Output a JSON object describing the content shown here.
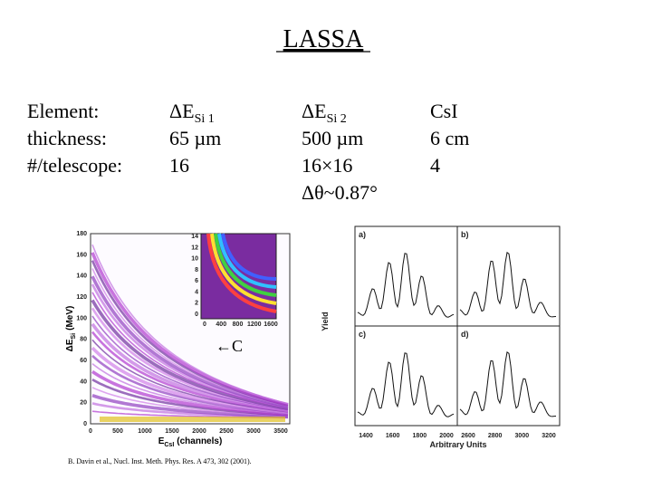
{
  "title": "LASSA",
  "columns": [
    {
      "lines": [
        "Element:",
        "thickness:",
        "#/telescope:"
      ]
    },
    {
      "symbol": "ΔE",
      "subscript": "Si 1",
      "lines": [
        "65 µm",
        "16"
      ]
    },
    {
      "symbol": "ΔE",
      "subscript": "Si 2",
      "lines": [
        "500 µm",
        "16×16",
        "Δθ~0.87°"
      ]
    },
    {
      "lines": [
        "CsI",
        "6 cm",
        "4"
      ]
    }
  ],
  "left_figure": {
    "y_label": "ΔE",
    "y_label_sub": "Si",
    "y_label_unit": "(MeV)",
    "x_label": "E",
    "x_label_sub": "CsI",
    "x_label_unit": "(channels)",
    "yticks": [
      "0",
      "20",
      "40",
      "60",
      "80",
      "100",
      "120",
      "140",
      "160",
      "180"
    ],
    "xticks": [
      "0",
      "500",
      "1000",
      "1500",
      "2000",
      "2500",
      "3000",
      "3500"
    ],
    "inset_yticks": [
      "0",
      "2",
      "4",
      "6",
      "8",
      "10",
      "12",
      "14"
    ],
    "inset_xticks": [
      "0",
      "400",
      "800",
      "1200",
      "1600"
    ],
    "annotation": "←C"
  },
  "right_figure": {
    "y_label": "Yield",
    "x_label": "Arbitrary Units",
    "panels": [
      "a)",
      "b)",
      "c)",
      "d)"
    ],
    "xticks_left": [
      "1400",
      "1600",
      "1800",
      "2000"
    ],
    "xticks_right": [
      "2600",
      "2800",
      "3000",
      "3200"
    ]
  },
  "citation": "B. Davin et al., Nucl. Inst. Meth. Phys. Res. A 473, 302 (2001)."
}
